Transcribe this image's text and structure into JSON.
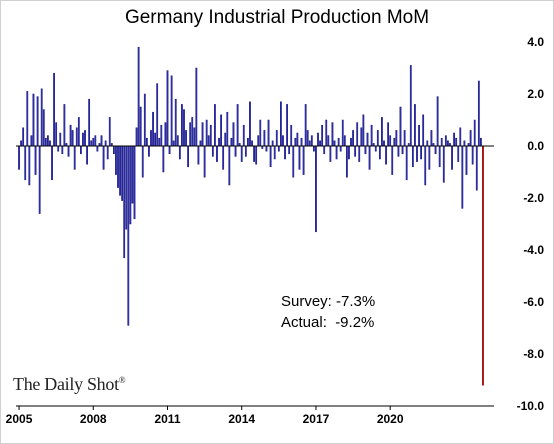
{
  "chart_data": {
    "type": "bar",
    "title": "Germany Industrial Production MoM",
    "xlabel": "",
    "ylabel": "",
    "ylim": [
      -10.0,
      4.0
    ],
    "y_ticks": [
      "4.0",
      "2.0",
      "0.0",
      "-2.0",
      "-4.0",
      "-6.0",
      "-8.0",
      "-10.0"
    ],
    "y_tick_values": [
      4,
      2,
      0,
      -2,
      -4,
      -6,
      -8,
      -10
    ],
    "x_tick_labels": [
      "2005",
      "2008",
      "2011",
      "2014",
      "2017",
      "2020"
    ],
    "start_year": 2005,
    "grid": false,
    "legend": "none",
    "colors": {
      "bar": "#3636b8",
      "bar_outline": "#10107a",
      "last_bar": "#cc1111",
      "axis": "#000000"
    },
    "values": [
      -0.9,
      0.2,
      0.7,
      -1.3,
      2.1,
      -1.5,
      0.4,
      2.0,
      -1.1,
      1.9,
      -2.6,
      2.2,
      1.4,
      0.3,
      0.4,
      0.2,
      -1.3,
      2.8,
      0.9,
      -0.2,
      0.5,
      -0.3,
      1.6,
      0.1,
      -0.4,
      0.8,
      0.6,
      -0.9,
      0.7,
      1.1,
      -0.3,
      0.5,
      0.6,
      -0.7,
      1.8,
      0.2,
      0.3,
      0.4,
      -0.2,
      0.1,
      0.4,
      -0.9,
      0.2,
      -0.5,
      1.1,
      0.1,
      -0.3,
      -1.1,
      -1.6,
      -1.9,
      -2.1,
      -4.3,
      -3.2,
      -6.9,
      -3.0,
      -2.2,
      -2.8,
      0.7,
      3.8,
      1.5,
      -1.2,
      2.0,
      0.3,
      -0.4,
      0.6,
      1.3,
      0.5,
      2.4,
      0.3,
      0.8,
      -1.0,
      0.9,
      2.9,
      -0.3,
      2.7,
      0.2,
      1.8,
      0.4,
      -0.5,
      1.6,
      1.4,
      0.6,
      -0.8,
      0.9,
      1.1,
      0.7,
      3.0,
      -0.7,
      0.2,
      0.9,
      -1.2,
      1.0,
      0.4,
      0.8,
      -0.4,
      1.6,
      -0.6,
      0.3,
      1.2,
      -0.9,
      0.5,
      1.3,
      -1.5,
      0.3,
      0.9,
      -0.4,
      1.6,
      0.1,
      -0.6,
      0.8,
      -0.4,
      0.3,
      1.7,
      0.2,
      -0.6,
      -0.7,
      0.4,
      1.0,
      -0.1,
      0.6,
      -0.2,
      1.0,
      -0.8,
      0.2,
      -0.5,
      0.6,
      -0.2,
      1.7,
      0.4,
      -0.5,
      1.6,
      -0.3,
      0.8,
      -1.2,
      0.3,
      0.5,
      -0.9,
      0.3,
      -1.1,
      1.6,
      0.6,
      0.2,
      0.4,
      -0.2,
      -3.3,
      0.5,
      0.2,
      0.8,
      -0.3,
      1.0,
      0.4,
      -0.6,
      0.9,
      0.2,
      -0.5,
      0.3,
      -0.2,
      1.0,
      0.4,
      -1.2,
      -0.5,
      0.3,
      0.6,
      -0.4,
      0.9,
      -0.6,
      0.7,
      1.2,
      -0.3,
      0.5,
      -0.9,
      0.8,
      0.1,
      -0.2,
      0.6,
      -0.5,
      1.1,
      0.2,
      -0.7,
      0.9,
      0.4,
      -1.1,
      0.3,
      0.6,
      -0.4,
      1.5,
      -0.3,
      0.6,
      -1.3,
      0.1,
      3.1,
      -0.8,
      1.6,
      -0.6,
      0.8,
      -0.5,
      1.2,
      -1.5,
      0.2,
      -0.9,
      0.6,
      0.1,
      -0.3,
      1.9,
      -0.8,
      0.3,
      -1.4,
      0.4,
      0.2,
      0.1,
      -0.9,
      0.5,
      0.3,
      -0.6,
      0.7,
      -2.4,
      0.2,
      -1.1,
      0.1,
      0.6,
      -0.7,
      1.0,
      -1.7,
      2.5,
      0.3,
      -9.2
    ],
    "annotations": {
      "survey": "Survey: -7.3%",
      "actual": "Actual:  -9.2%"
    },
    "brand": {
      "text": "The Daily Shot",
      "mark": "®"
    }
  }
}
